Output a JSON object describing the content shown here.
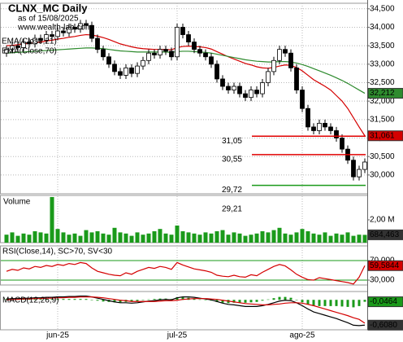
{
  "chart_data": [
    {
      "type": "candlestick",
      "title": "CLNX_MC Daily",
      "subtitle": "as of 15/08/2025",
      "source": "www.wealth-lab.com",
      "categories": [
        null,
        null,
        null,
        null,
        null,
        null,
        null,
        null,
        null,
        "jun-25",
        null,
        null,
        null,
        null,
        null,
        null,
        null,
        null,
        null,
        null,
        null,
        null,
        null,
        null,
        null,
        null,
        null,
        null,
        null,
        null,
        "jul-25",
        null,
        null,
        null,
        null,
        null,
        null,
        null,
        null,
        null,
        null,
        null,
        null,
        null,
        null,
        null,
        null,
        null,
        null,
        null,
        null,
        null,
        "ago-25",
        null,
        null,
        null,
        null,
        null,
        null,
        null,
        null,
        null,
        null,
        null
      ],
      "open": [
        33300,
        33400,
        33500,
        33450,
        33600,
        33550,
        33700,
        33650,
        33800,
        33750,
        33900,
        33850,
        34000,
        33950,
        34100,
        34050,
        33700,
        33400,
        33200,
        33000,
        32800,
        32700,
        32900,
        32750,
        32950,
        33100,
        33300,
        33250,
        33400,
        33350,
        33200,
        34000,
        33800,
        33600,
        33400,
        33300,
        33200,
        33000,
        32600,
        32400,
        32300,
        32400,
        32200,
        32100,
        32300,
        32200,
        32500,
        32800,
        33100,
        33400,
        33300,
        32900,
        32300,
        31800,
        31300,
        31200,
        31400,
        31300,
        31200,
        31000,
        30700,
        30400,
        29950,
        30150
      ],
      "high": [
        33500,
        33600,
        33600,
        33700,
        33700,
        33800,
        33800,
        33900,
        33900,
        34000,
        34000,
        34100,
        34100,
        34200,
        34200,
        34150,
        33800,
        33500,
        33300,
        33100,
        32900,
        33000,
        33000,
        33050,
        33200,
        33400,
        33400,
        33500,
        33500,
        33450,
        34100,
        34100,
        33900,
        33700,
        33500,
        33400,
        33300,
        33100,
        32700,
        32500,
        32500,
        32500,
        32300,
        32400,
        32400,
        32600,
        32900,
        33200,
        33500,
        33500,
        33400,
        33000,
        32400,
        31900,
        31400,
        31500,
        31500,
        31400,
        31300,
        31100,
        30800,
        30500,
        30250,
        30450
      ],
      "low": [
        33200,
        33300,
        33350,
        33350,
        33450,
        33450,
        33550,
        33550,
        33650,
        33650,
        33750,
        33750,
        33850,
        33850,
        33950,
        33600,
        33300,
        33100,
        32900,
        32700,
        32600,
        32600,
        32650,
        32650,
        32850,
        33000,
        33150,
        33150,
        33250,
        33100,
        33100,
        33700,
        33500,
        33300,
        33200,
        33100,
        32900,
        32500,
        32300,
        32200,
        32200,
        32100,
        32000,
        32000,
        32100,
        32100,
        32400,
        32700,
        33000,
        33200,
        32800,
        32200,
        31700,
        31200,
        31100,
        31100,
        31200,
        31100,
        30900,
        30600,
        30300,
        29850,
        29850,
        30050
      ],
      "close": [
        33400,
        33500,
        33450,
        33600,
        33550,
        33700,
        33650,
        33800,
        33750,
        33900,
        33850,
        34000,
        33950,
        34100,
        34050,
        33700,
        33400,
        33200,
        33000,
        32800,
        32700,
        32900,
        32750,
        32950,
        33100,
        33300,
        33250,
        33400,
        33350,
        33200,
        34000,
        33800,
        33600,
        33400,
        33300,
        33200,
        33000,
        32600,
        32400,
        32300,
        32400,
        32200,
        32100,
        32300,
        32200,
        32500,
        32800,
        33100,
        33400,
        33300,
        32900,
        32300,
        31800,
        31300,
        31200,
        31400,
        31300,
        31200,
        31000,
        30700,
        30400,
        29950,
        30150,
        30350
      ],
      "up_color": "#ffffff",
      "down_color": "#000000",
      "series": [
        {
          "name": "EMA(Close,21)",
          "color": "#d40000",
          "last_label": "31,061",
          "values": [
            33500,
            33510,
            33530,
            33550,
            33560,
            33580,
            33600,
            33630,
            33650,
            33680,
            33700,
            33730,
            33750,
            33780,
            33800,
            33790,
            33760,
            33720,
            33670,
            33610,
            33550,
            33510,
            33470,
            33440,
            33420,
            33410,
            33400,
            33400,
            33400,
            33390,
            33450,
            33480,
            33490,
            33480,
            33470,
            33450,
            33410,
            33340,
            33270,
            33200,
            33140,
            33080,
            33020,
            32980,
            32930,
            32900,
            32890,
            32910,
            32950,
            32980,
            32970,
            32910,
            32820,
            32700,
            32580,
            32490,
            32400,
            32300,
            32150,
            32000,
            31800,
            31550,
            31300,
            31061
          ]
        },
        {
          "name": "EMA(Close,70)",
          "color": "#2e8b2e",
          "last_label": "32,212",
          "values": [
            33300,
            33310,
            33320,
            33330,
            33340,
            33350,
            33360,
            33370,
            33380,
            33390,
            33400,
            33410,
            33420,
            33430,
            33440,
            33440,
            33430,
            33420,
            33400,
            33380,
            33360,
            33350,
            33340,
            33330,
            33330,
            33330,
            33330,
            33330,
            33330,
            33320,
            33340,
            33350,
            33350,
            33340,
            33330,
            33320,
            33300,
            33270,
            33240,
            33210,
            33180,
            33150,
            33120,
            33100,
            33080,
            33070,
            33060,
            33060,
            33070,
            33070,
            33060,
            33030,
            32990,
            32940,
            32880,
            32820,
            32760,
            32700,
            32630,
            32560,
            32480,
            32390,
            32300,
            32212
          ]
        }
      ],
      "levels": [
        {
          "value": 31050,
          "label": "31,05",
          "color": "#e00000"
        },
        {
          "value": 30550,
          "label": "30,55",
          "color": "#e00000"
        },
        {
          "value": 29720,
          "label": "29,72",
          "color": "#1a9a1a"
        },
        {
          "value": 29210,
          "label": "29,21",
          "color": "#1a9a1a"
        }
      ],
      "ylim": [
        29490,
        34650
      ],
      "yticks": [
        {
          "value": 30000,
          "label": "30,000"
        },
        {
          "value": 30500,
          "label": "30,500"
        },
        {
          "value": 31000,
          "label": "31,000"
        },
        {
          "value": 31500,
          "label": "31,500"
        },
        {
          "value": 32000,
          "label": "32,000"
        },
        {
          "value": 32500,
          "label": "32,500"
        },
        {
          "value": 33000,
          "label": "33,000"
        },
        {
          "value": 33500,
          "label": "33,500"
        },
        {
          "value": 34000,
          "label": "34,000"
        },
        {
          "value": 34500,
          "label": "34,500"
        }
      ],
      "grid": true
    },
    {
      "type": "bar",
      "title": "Volume",
      "color": "#1a9a1a",
      "last_label": "684,463",
      "values": [
        700000,
        900000,
        600000,
        800000,
        700000,
        1000000,
        900000,
        800000,
        4000000,
        1200000,
        900000,
        700000,
        800000,
        600000,
        1100000,
        900000,
        1000000,
        800000,
        700000,
        1300000,
        900000,
        800000,
        600000,
        900000,
        700000,
        800000,
        1000000,
        1200000,
        800000,
        700000,
        1500000,
        1000000,
        900000,
        800000,
        700000,
        900000,
        800000,
        1000000,
        1100000,
        700000,
        900000,
        800000,
        600000,
        700000,
        800000,
        1000000,
        900000,
        1100000,
        1300000,
        800000,
        700000,
        900000,
        1200000,
        1000000,
        800000,
        700000,
        900000,
        600000,
        800000,
        700000,
        900000,
        600000,
        700000,
        684463
      ],
      "ylim": [
        0,
        4140000
      ],
      "yticks": [
        {
          "value": 2000000,
          "label": "2,00 M"
        }
      ]
    },
    {
      "type": "line",
      "title": "RSI(Close,14), SC>70, SV<30",
      "band_color": "#1a9a1a",
      "series": [
        {
          "color": "#d40000",
          "last_label": "59,5844",
          "values": [
            48,
            52,
            50,
            55,
            53,
            58,
            56,
            60,
            58,
            62,
            60,
            64,
            62,
            66,
            64,
            55,
            48,
            45,
            42,
            40,
            39,
            45,
            42,
            48,
            52,
            56,
            54,
            58,
            56,
            52,
            66,
            61,
            57,
            53,
            51,
            49,
            46,
            40,
            38,
            37,
            40,
            37,
            36,
            41,
            39,
            46,
            52,
            58,
            62,
            59,
            51,
            42,
            36,
            31,
            30,
            35,
            33,
            31,
            29,
            27,
            25,
            22,
            36,
            59.5844
          ]
        }
      ],
      "ylim": [
        20,
        100
      ],
      "yticks": [
        {
          "value": 70,
          "label": "70,000"
        },
        {
          "value": 30,
          "label": "30,000"
        }
      ]
    },
    {
      "type": "macd",
      "title": "MACD(12,26,9)",
      "series": [
        {
          "color": "#000000",
          "last_label": "-0,6080",
          "values": [
            0.02,
            0.03,
            0.03,
            0.04,
            0.04,
            0.05,
            0.05,
            0.06,
            0.06,
            0.07,
            0.07,
            0.08,
            0.08,
            0.09,
            0.09,
            0.07,
            0.04,
            0.01,
            -0.02,
            -0.05,
            -0.07,
            -0.07,
            -0.08,
            -0.07,
            -0.05,
            -0.03,
            -0.02,
            0,
            0.01,
            0,
            0.05,
            0.07,
            0.07,
            0.06,
            0.04,
            0.02,
            0,
            -0.04,
            -0.08,
            -0.11,
            -0.12,
            -0.14,
            -0.16,
            -0.16,
            -0.16,
            -0.14,
            -0.11,
            -0.07,
            -0.03,
            -0.01,
            -0.02,
            -0.07,
            -0.14,
            -0.22,
            -0.29,
            -0.33,
            -0.37,
            -0.41,
            -0.45,
            -0.5,
            -0.55,
            -0.61,
            -0.62,
            -0.608
          ]
        },
        {
          "color": "#d40000",
          "values": [
            0,
            0.01,
            0.01,
            0.02,
            0.02,
            0.03,
            0.03,
            0.04,
            0.04,
            0.05,
            0.05,
            0.06,
            0.06,
            0.07,
            0.07,
            0.07,
            0.06,
            0.05,
            0.03,
            0.01,
            -0.01,
            -0.02,
            -0.04,
            -0.04,
            -0.04,
            -0.04,
            -0.04,
            -0.03,
            -0.02,
            -0.02,
            -0.01,
            0.01,
            0.02,
            0.03,
            0.03,
            0.03,
            0.02,
            0.01,
            -0.01,
            -0.03,
            -0.05,
            -0.07,
            -0.09,
            -0.1,
            -0.11,
            -0.12,
            -0.12,
            -0.11,
            -0.1,
            -0.08,
            -0.07,
            -0.07,
            -0.08,
            -0.11,
            -0.14,
            -0.18,
            -0.22,
            -0.26,
            -0.3,
            -0.34,
            -0.38,
            -0.43,
            -0.47,
            -0.5616
          ]
        }
      ],
      "histogram": {
        "color": "#1a9a1a",
        "last_label": "-0,0464",
        "values": [
          0.02,
          0.02,
          0.02,
          0.02,
          0.02,
          0.02,
          0.02,
          0.02,
          0.02,
          0.02,
          0.02,
          0.02,
          0.02,
          0.02,
          0.02,
          0,
          -0.02,
          -0.04,
          -0.05,
          -0.06,
          -0.06,
          -0.05,
          -0.04,
          -0.03,
          -0.01,
          0.01,
          0.02,
          0.03,
          0.03,
          0.02,
          0.06,
          0.06,
          0.05,
          0.03,
          0.01,
          -0.01,
          -0.02,
          -0.05,
          -0.07,
          -0.08,
          -0.07,
          -0.07,
          -0.07,
          -0.06,
          -0.05,
          -0.02,
          0.01,
          0.04,
          0.07,
          0.07,
          0.05,
          0,
          -0.06,
          -0.11,
          -0.15,
          -0.15,
          -0.15,
          -0.15,
          -0.15,
          -0.16,
          -0.17,
          -0.18,
          -0.15,
          -0.0464
        ]
      },
      "ylim": [
        -0.72,
        0.2
      ]
    }
  ]
}
